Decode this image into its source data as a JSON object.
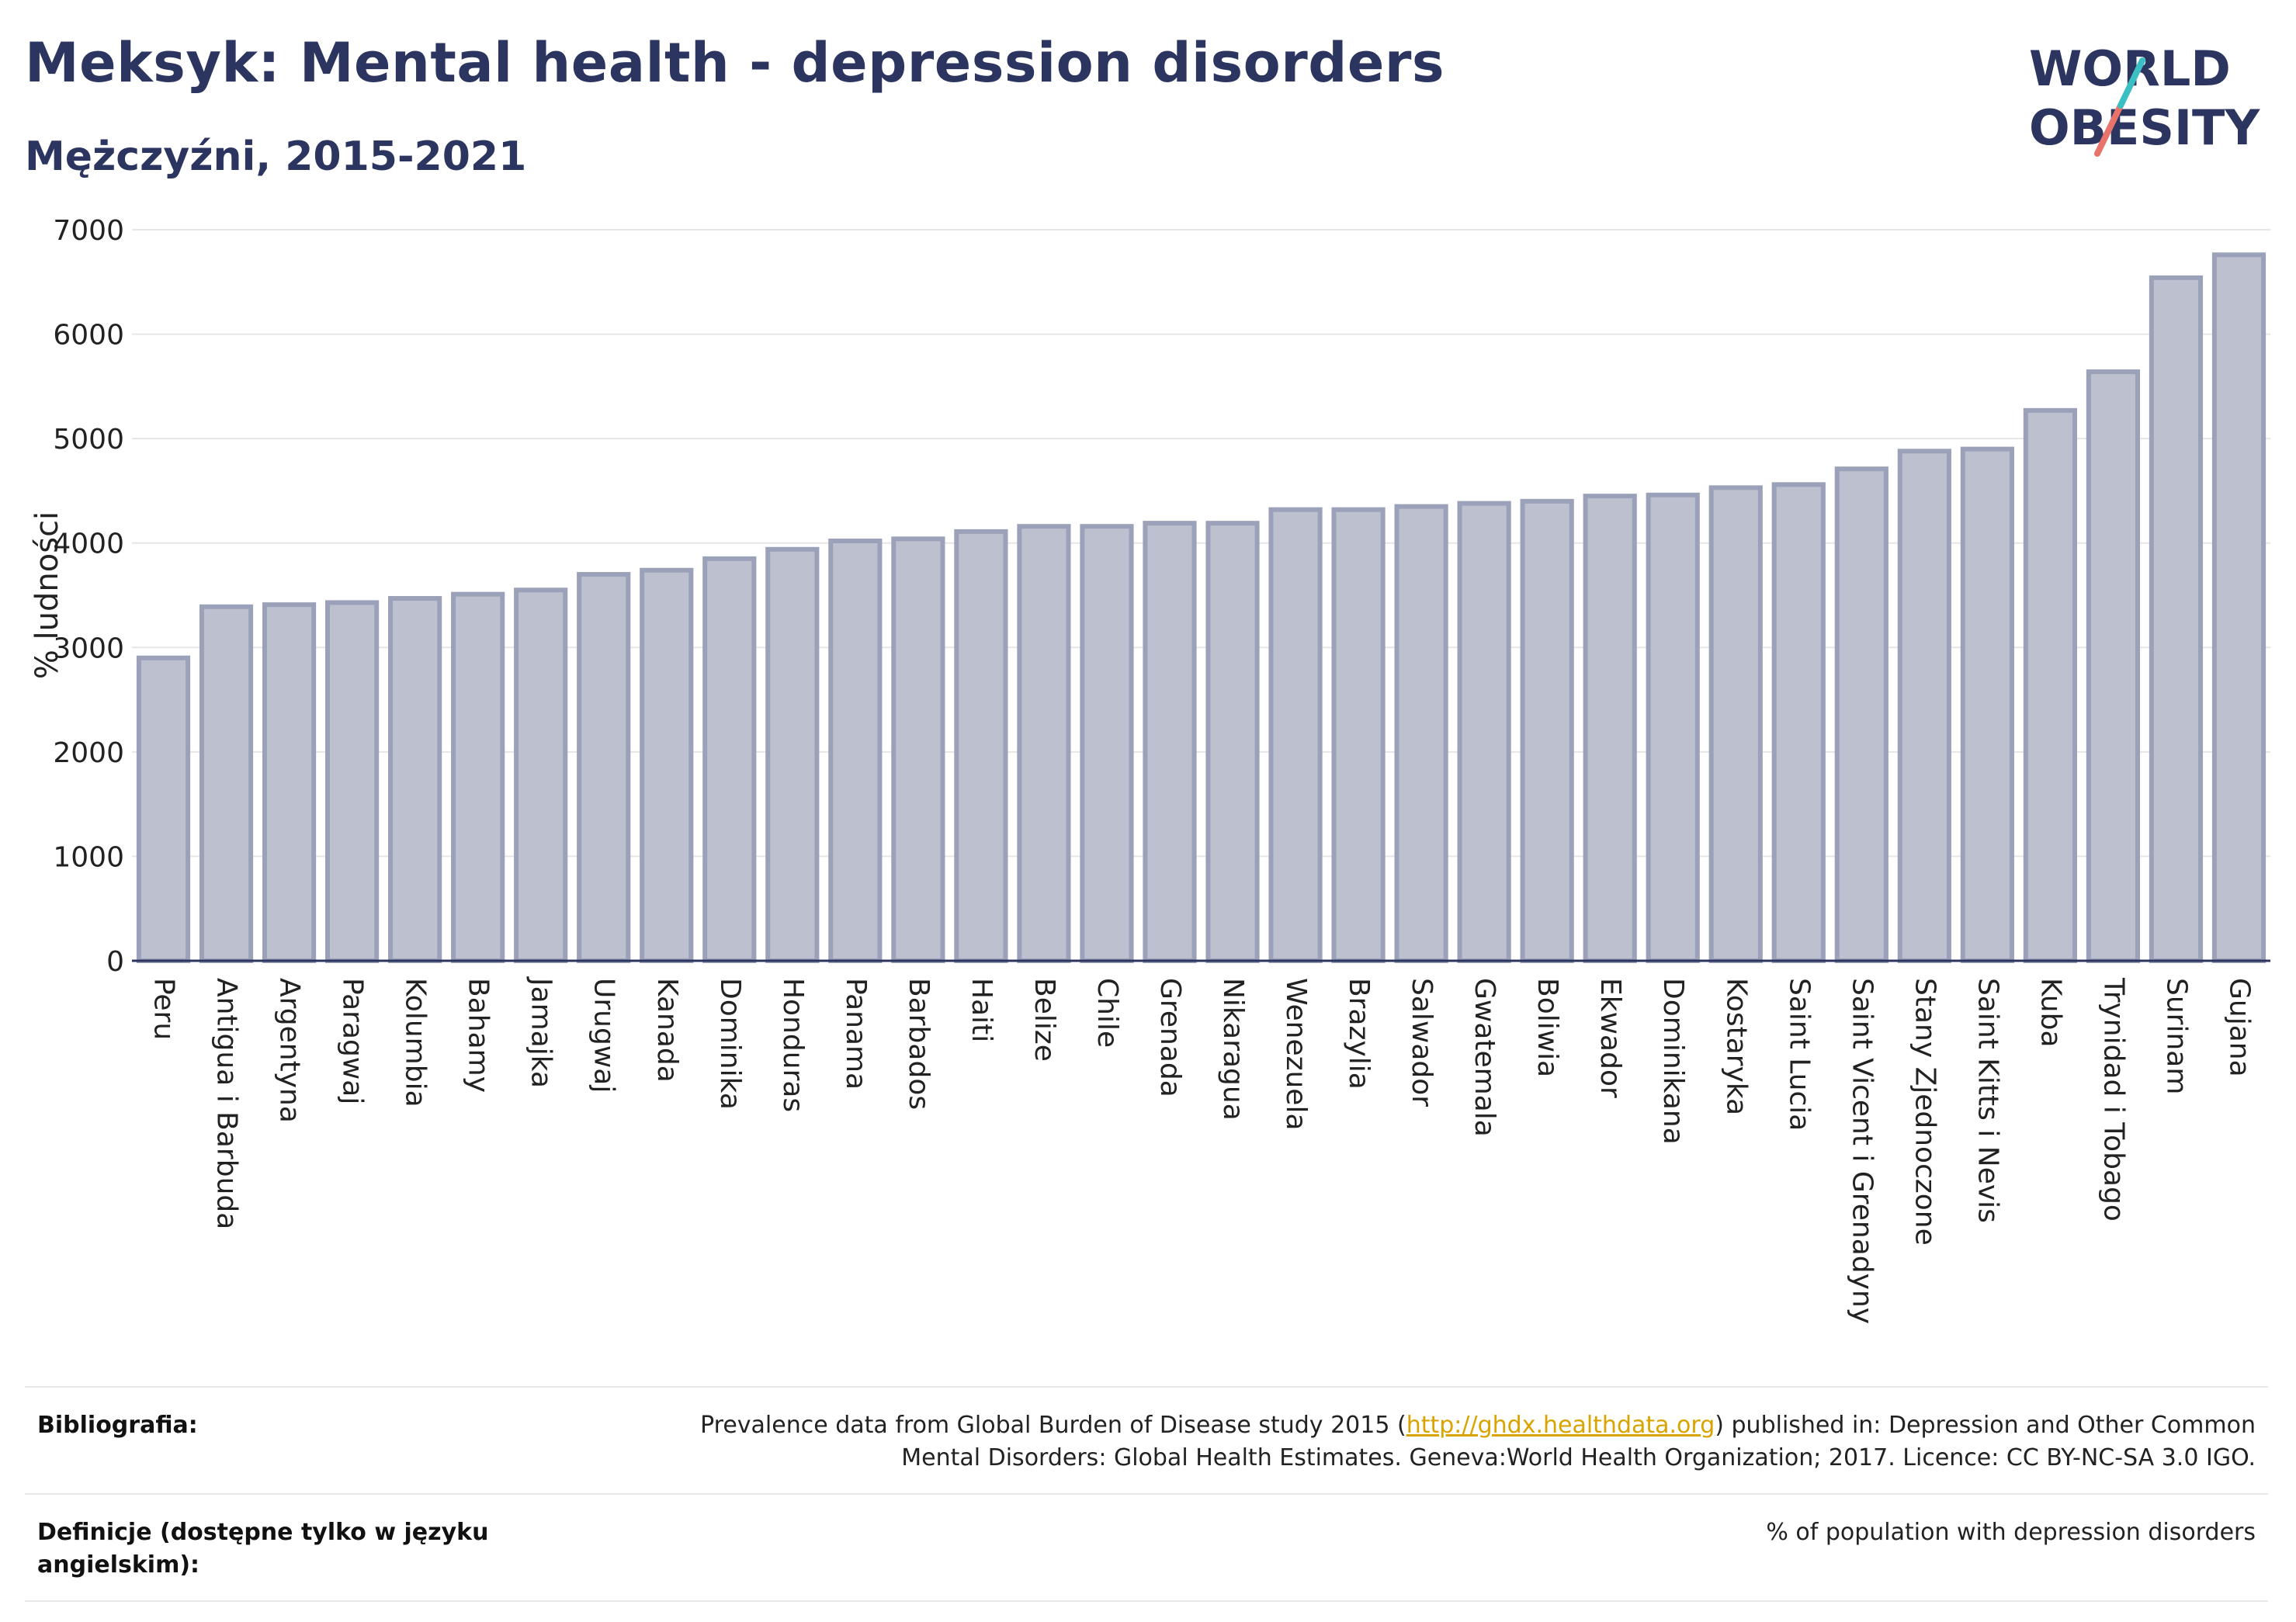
{
  "header": {
    "title": "Meksyk: Mental health - depression disorders",
    "subtitle": "Mężczyźni, 2015-2021"
  },
  "logo": {
    "line1": "WORLD",
    "line2": "OBESITY",
    "colors": {
      "text": "#2b3560",
      "slash_top": "#3bbfc3",
      "slash_bottom": "#e8736a"
    }
  },
  "colors": {
    "bar_fill": "#bcc0cf",
    "bar_stroke": "#9ba1b8",
    "axis": "#2b3560",
    "grid": "#e6e6e6"
  },
  "chart_data": {
    "type": "bar",
    "title": "Meksyk: Mental health - depression disorders",
    "subtitle": "Mężczyźni, 2015-2021",
    "xlabel": "",
    "ylabel": "% ludności",
    "ylim": [
      0,
      7000
    ],
    "yticks": [
      0,
      1000,
      2000,
      3000,
      4000,
      5000,
      6000,
      7000
    ],
    "grid": true,
    "categories": [
      "Peru",
      "Antigua i Barbuda",
      "Argentyna",
      "Paragwaj",
      "Kolumbia",
      "Bahamy",
      "Jamajka",
      "Urugwaj",
      "Kanada",
      "Dominika",
      "Honduras",
      "Panama",
      "Barbados",
      "Haiti",
      "Belize",
      "Chile",
      "Grenada",
      "Nikaragua",
      "Wenezuela",
      "Brazylia",
      "Salwador",
      "Gwatemala",
      "Boliwia",
      "Ekwador",
      "Dominikana",
      "Kostaryka",
      "Saint Lucia",
      "Saint Vicent i Grenadyny",
      "Stany Zjednoczone",
      "Saint Kitts i Nevis",
      "Kuba",
      "Trynidad i Tobago",
      "Surinam",
      "Gujana"
    ],
    "values": [
      2900,
      3390,
      3410,
      3430,
      3470,
      3510,
      3550,
      3700,
      3740,
      3850,
      3940,
      4020,
      4040,
      4110,
      4160,
      4160,
      4190,
      4190,
      4320,
      4320,
      4350,
      4380,
      4400,
      4450,
      4460,
      4530,
      4560,
      4710,
      4880,
      4900,
      5270,
      5640,
      6540,
      6760
    ]
  },
  "footer": {
    "bibliography_label": "Bibliografia:",
    "bibliography_pre": "Prevalence data from Global Burden of Disease study 2015 (",
    "bibliography_link": "http://ghdx.healthdata.org",
    "bibliography_post": ") published in: Depression and Other Common",
    "bibliography_line2": "Mental Disorders: Global Health Estimates. Geneva:World Health Organization; 2017. Licence: CC BY-NC-SA 3.0 IGO.",
    "definitions_label": "Definicje (dostępne tylko w języku angielskim):",
    "definitions_text": "% of population with depression disorders"
  }
}
